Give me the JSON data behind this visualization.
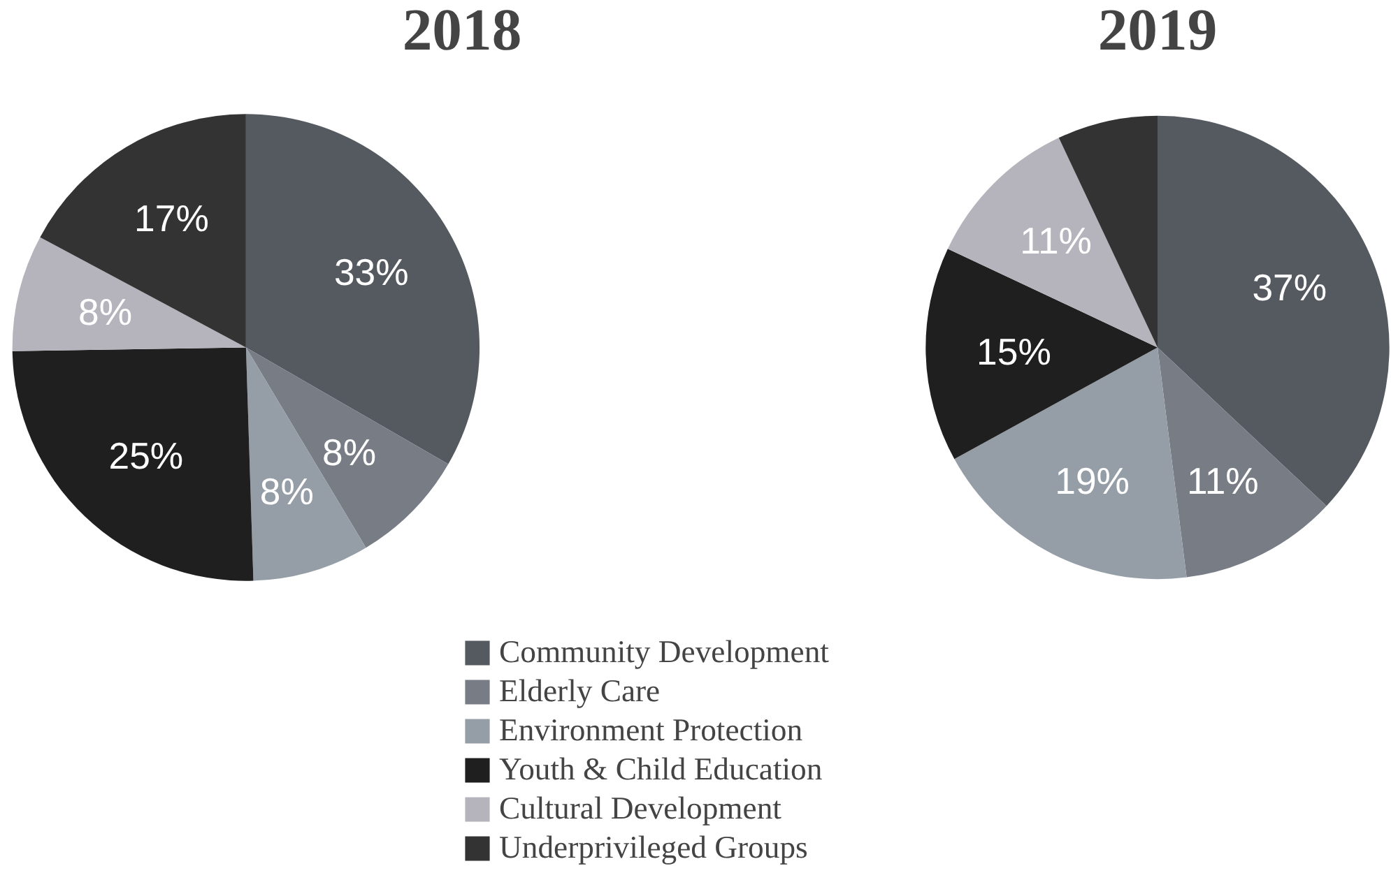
{
  "chart_data": [
    {
      "type": "pie",
      "title": "2018",
      "categories": [
        "Community Development",
        "Elderly Care",
        "Environment Protection",
        "Youth & Child Education",
        "Cultural Development",
        "Underprivileged Groups"
      ],
      "values": [
        33,
        8,
        8,
        25,
        8,
        17
      ],
      "colors": [
        "#555a61",
        "#777c85",
        "#959ea7",
        "#1f1f1f",
        "#b5b4bd",
        "#333333"
      ],
      "value_labels": [
        "33%",
        "8%",
        "8%",
        "25%",
        "8%",
        "17%"
      ],
      "legend": "bottom"
    },
    {
      "type": "pie",
      "title": "2019",
      "categories": [
        null,
        null,
        null,
        null,
        null,
        null
      ],
      "values": [
        37,
        11,
        19,
        15,
        11,
        7
      ],
      "colors": [
        "#555a61",
        "#777c85",
        "#959ea7",
        "#1f1f1f",
        "#b5b4bd",
        "#333333"
      ],
      "value_labels": [
        "37%",
        "11%",
        "19%",
        "15%",
        "11%",
        null
      ]
    }
  ]
}
